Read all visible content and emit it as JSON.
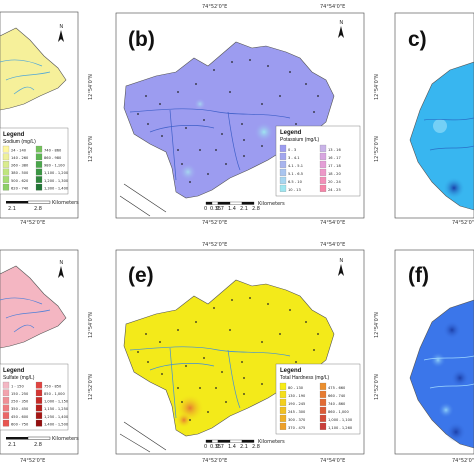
{
  "panels": [
    {
      "id": "a",
      "label": "",
      "legend_title": "Legend",
      "legend_sub": "Sodium (mg/L)",
      "classes": [
        "24 - 140",
        "140 - 260",
        "260 - 380",
        "380 - 500",
        "500 - 620",
        "620 - 740",
        "740 - 860",
        "860 - 980",
        "980 - 1,100",
        "1,100 - 1,200",
        "1,200 - 1,300",
        "1,300 - 1,400"
      ],
      "colors": [
        "#fff7a0",
        "#eef09a",
        "#d9eb8e",
        "#bfe57f",
        "#a6dd73",
        "#8ccf66",
        "#74c25c",
        "#5cb552",
        "#49a64a",
        "#3b9643",
        "#2f873d",
        "#227636"
      ],
      "fill": "#f6f09a",
      "scale_labels": [
        "2.1",
        "2.8",
        "Kilometers"
      ]
    },
    {
      "id": "b",
      "label": "(b)",
      "legend_title": "Legend",
      "legend_sub": "Potassium (mg/L)",
      "classes": [
        "0 - 3",
        "3 - 4.1",
        "4.1 - 5.1",
        "5.1 - 6.5",
        "6.5 - 10",
        "10 - 13",
        "13 - 16",
        "16 - 17",
        "17 - 18",
        "18 - 20",
        "20 - 24",
        "24 - 25"
      ],
      "colors": [
        "#9c9cf0",
        "#a2a6ee",
        "#a8b4ee",
        "#a9c5ef",
        "#a6d6f0",
        "#9ee6f0",
        "#c9b3e8",
        "#d8a6e0",
        "#e49ed6",
        "#ed98c8",
        "#f28fb8",
        "#f585a8"
      ],
      "fill": "#9c9cf0",
      "scale_labels": [
        "0",
        "0.35",
        "0.7",
        "1.4",
        "2.1",
        "2.8",
        "Kilometers"
      ]
    },
    {
      "id": "c",
      "label": "c)",
      "legend_title": "",
      "legend_sub": "",
      "classes": [],
      "colors": [],
      "fill": "#38b6f0",
      "scale_labels": []
    },
    {
      "id": "d",
      "label": "",
      "legend_title": "Legend",
      "legend_sub": "Sulfate (mg/L)",
      "classes": [
        "1 - 150",
        "150 - 250",
        "250 - 350",
        "350 - 450",
        "450 - 600",
        "600 - 750",
        "750 - 850",
        "850 - 1,000",
        "1,000 - 1,150",
        "1,150 - 1,250",
        "1,250 - 1,400",
        "1,400 - 1,500"
      ],
      "colors": [
        "#f3b7c3",
        "#f2a3ad",
        "#f08f96",
        "#ee7b7f",
        "#eb6767",
        "#e85550",
        "#e04440",
        "#d43632",
        "#c62a26",
        "#b61f1c",
        "#a61614",
        "#940e0e"
      ],
      "fill": "#f4b6c2",
      "scale_labels": [
        "2.1",
        "2.8",
        "Kilometers"
      ]
    },
    {
      "id": "e",
      "label": "(e)",
      "legend_title": "Legend",
      "legend_sub": "Total Hardness (mg/L)",
      "classes": [
        "80 - 130",
        "130 - 190",
        "190 - 245",
        "245 - 300",
        "300 - 370",
        "370 - 475",
        "475 - 660",
        "660 - 740",
        "740 - 860",
        "860 - 1,000",
        "1,000 - 1,100",
        "1,100 - 1,260"
      ],
      "colors": [
        "#f7ec16",
        "#f5de1a",
        "#f3cf1e",
        "#f1c022",
        "#efb026",
        "#eda02a",
        "#eb8f2e",
        "#e77b30",
        "#e26a33",
        "#dc5a36",
        "#d44b38",
        "#c93d3a"
      ],
      "fill": "#f3ea1a",
      "scale_labels": [
        "0",
        "0.35",
        "0.7",
        "1.4",
        "2.1",
        "2.8",
        "Kilometers"
      ]
    },
    {
      "id": "f",
      "label": "(f)",
      "legend_title": "",
      "legend_sub": "",
      "classes": [],
      "colors": [],
      "fill": "#3b76ea",
      "scale_labels": []
    }
  ],
  "coords": {
    "top_left_lon": "74°52'0\"E",
    "top_right_lon": "74°54'0\"E",
    "bottom_left_lon": "74°52'0\"E",
    "bottom_right_lon": "74°54'0\"E",
    "lat_top": "12°54'0\"N",
    "lat_bottom": "12°52'0\"N"
  },
  "north_label": "N"
}
